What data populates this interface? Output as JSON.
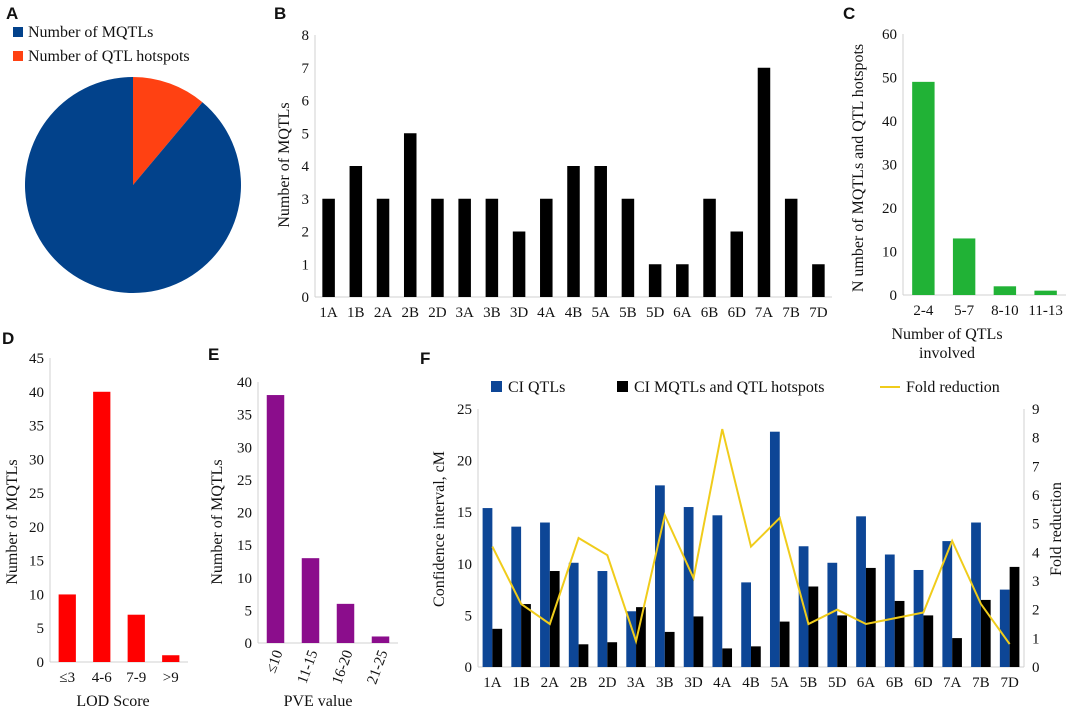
{
  "panel_labels": [
    "A",
    "B",
    "C",
    "D",
    "E",
    "F"
  ],
  "colors": {
    "mqtl_blue": "#02428b",
    "hotspot_orange": "#ff4112",
    "black": "#000000",
    "green": "#21b236",
    "red": "#ff0000",
    "purple": "#8b0d8c",
    "ci_blue": "#0d4696",
    "fold_yellow": "#f0cc1b",
    "axis_gray": "#d0d0d0"
  },
  "chart_data": [
    {
      "id": "A",
      "type": "pie",
      "labels": [
        "Number of MQTLs",
        "Number of QTL hotspots"
      ],
      "values": [
        56,
        7
      ]
    },
    {
      "id": "B",
      "type": "bar",
      "categories": [
        "1A",
        "1B",
        "2A",
        "2B",
        "2D",
        "3A",
        "3B",
        "3D",
        "4A",
        "4B",
        "5A",
        "5B",
        "5D",
        "6A",
        "6B",
        "6D",
        "7A",
        "7B",
        "7D"
      ],
      "values": [
        3,
        4,
        3,
        5,
        3,
        3,
        3,
        2,
        3,
        4,
        4,
        3,
        1,
        1,
        3,
        2,
        7,
        3,
        1
      ],
      "xlabel": "",
      "ylabel": "Number of MQTLs",
      "ylim": [
        0,
        8
      ],
      "yticks": [
        0,
        1,
        2,
        3,
        4,
        5,
        6,
        7,
        8
      ]
    },
    {
      "id": "C",
      "type": "bar",
      "categories": [
        "2-4",
        "5-7",
        "8-10",
        "11-13"
      ],
      "values": [
        49,
        13,
        2,
        1
      ],
      "xlabel_lines": [
        "Number of QTLs",
        "involved"
      ],
      "ylabel": "N umber of MQTLs and QTL hotspots",
      "ylim": [
        0,
        60
      ],
      "yticks": [
        0,
        10,
        20,
        30,
        40,
        50,
        60
      ]
    },
    {
      "id": "D",
      "type": "bar",
      "categories": [
        "≤3",
        "4-6",
        "7-9",
        ">9"
      ],
      "values": [
        10,
        40,
        7,
        1
      ],
      "xlabel": "LOD Score",
      "ylabel": "Number of MQTLs",
      "ylim": [
        0,
        45
      ],
      "yticks": [
        0,
        5,
        10,
        15,
        20,
        25,
        30,
        35,
        40,
        45
      ]
    },
    {
      "id": "E",
      "type": "bar",
      "categories": [
        "≤10",
        "11-15",
        "16-20",
        "21-25"
      ],
      "values": [
        38,
        13,
        6,
        1
      ],
      "xlabel": "PVE value",
      "ylabel": "Number of MQTLs",
      "ylim": [
        0,
        40
      ],
      "yticks": [
        0,
        5,
        10,
        15,
        20,
        25,
        30,
        35,
        40
      ]
    },
    {
      "id": "F",
      "type": "bar",
      "categories": [
        "1A",
        "1B",
        "2A",
        "2B",
        "2D",
        "3A",
        "3B",
        "3D",
        "4A",
        "4B",
        "5A",
        "5B",
        "5D",
        "6A",
        "6B",
        "6D",
        "7A",
        "7B",
        "7D"
      ],
      "series": [
        {
          "name": "CI QTLs",
          "values": [
            15.4,
            13.6,
            14.0,
            10.1,
            9.3,
            5.4,
            17.6,
            15.5,
            14.7,
            8.2,
            22.8,
            11.7,
            10.1,
            14.6,
            10.9,
            9.4,
            12.2,
            14.0,
            7.5
          ]
        },
        {
          "name": "CI MQTLs and QTL hotspots",
          "values": [
            3.7,
            6.1,
            9.3,
            2.2,
            2.4,
            5.8,
            3.4,
            4.9,
            1.8,
            2.0,
            4.4,
            7.8,
            5.0,
            9.6,
            6.4,
            5.0,
            2.8,
            6.5,
            9.7
          ]
        },
        {
          "name": "Fold reduction",
          "axis": "right",
          "values": [
            4.2,
            2.2,
            1.5,
            4.5,
            3.9,
            0.9,
            5.3,
            3.1,
            8.3,
            4.2,
            5.2,
            1.5,
            2.0,
            1.5,
            1.7,
            1.9,
            4.4,
            2.2,
            0.8
          ]
        }
      ],
      "ylabel": "Confidence interval, cM",
      "ylabel_right": "Fold reduction",
      "ylim": [
        0,
        25
      ],
      "yticks": [
        0,
        5,
        10,
        15,
        20,
        25
      ],
      "ylim_right": [
        0,
        9
      ],
      "yticks_right": [
        0,
        1,
        2,
        3,
        4,
        5,
        6,
        7,
        8,
        9
      ]
    }
  ]
}
